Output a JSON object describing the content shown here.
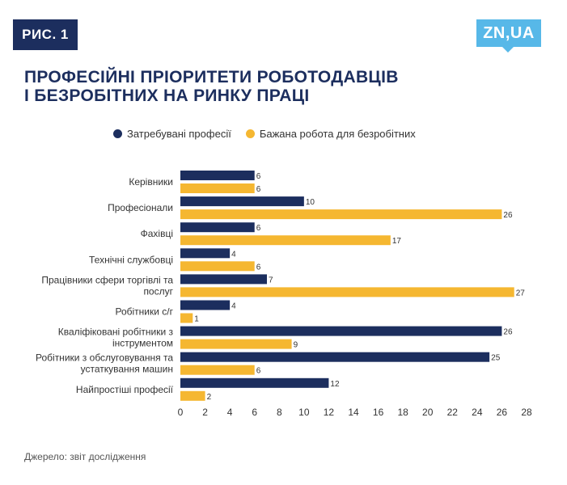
{
  "badge": "РИС. 1",
  "logo": "ZN,UA",
  "title_line1": "ПРОФЕСІЙНІ ПРІОРИТЕТИ РОБОТОДАВЦІВ",
  "title_line2": "І БЕЗРОБІТНИХ НА РИНКУ ПРАЦІ",
  "source": "Джерело: звіт  дослідження",
  "chart_data": {
    "type": "bar",
    "orientation": "horizontal",
    "categories": [
      [
        "Керівники"
      ],
      [
        "Професіонали"
      ],
      [
        "Фахівці"
      ],
      [
        "Технічні службовці"
      ],
      [
        "Працівники сфери торгівлі та",
        "послуг"
      ],
      [
        "Робітники с/г"
      ],
      [
        "Кваліфіковані робітники з",
        "інструментом"
      ],
      [
        "Робітники з обслуговування та",
        "устаткування машин"
      ],
      [
        "Найпростіші професії"
      ]
    ],
    "series": [
      {
        "name": "Затребувані професії",
        "color": "#1c2e5e",
        "values": [
          6,
          10,
          6,
          4,
          7,
          4,
          26,
          25,
          12
        ]
      },
      {
        "name": "Бажана робота для безробітних",
        "color": "#f5b731",
        "values": [
          6,
          26,
          17,
          6,
          27,
          1,
          9,
          6,
          2
        ]
      }
    ],
    "xticks": [
      0,
      2,
      4,
      6,
      8,
      10,
      12,
      14,
      16,
      18,
      20,
      22,
      24,
      26,
      28
    ],
    "xlim": [
      0,
      28
    ],
    "legend_position": "top",
    "grid": false
  }
}
